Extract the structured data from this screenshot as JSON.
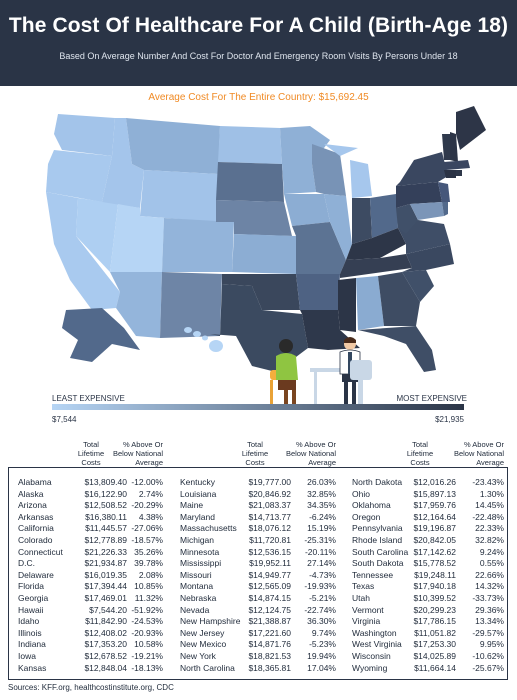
{
  "header": {
    "title": "The Cost Of Healthcare For A Child (Birth-Age 18)",
    "subtitle": "Based On Average Number And Cost For Doctor And Emergency Room Visits By Persons Under 18"
  },
  "average_line": "Average Cost For The Entire Country: $15,692.45",
  "legend": {
    "left_label": "LEAST EXPENSIVE",
    "right_label": "MOST EXPENSIVE",
    "min_value": "$7,544",
    "max_value": "$21,935",
    "color_low": "#b6d5f5",
    "color_high": "#2a3446"
  },
  "table": {
    "header_cost": [
      "Total",
      "Lifetime",
      "Costs"
    ],
    "header_pct": [
      "% Above Or",
      "Below National",
      "Average"
    ],
    "columns": [
      [
        [
          "Alabama",
          "$13,809.40",
          "-12.00%"
        ],
        [
          "Alaska",
          "$16,122.90",
          "2.74%"
        ],
        [
          "Arizona",
          "$12,508.52",
          "-20.29%"
        ],
        [
          "Arkansas",
          "$16,380.11",
          "4.38%"
        ],
        [
          "California",
          "$11,445.57",
          "-27.06%"
        ],
        [
          "Colorado",
          "$12,778.89",
          "-18.57%"
        ],
        [
          "Connecticut",
          "$21,226.33",
          "35.26%"
        ],
        [
          "D.C.",
          "$21,934.87",
          "39.78%"
        ],
        [
          "Delaware",
          "$16,019.35",
          "2.08%"
        ],
        [
          "Florida",
          "$17,394.44",
          "10.85%"
        ],
        [
          "Georgia",
          "$17,469.01",
          "11.32%"
        ],
        [
          "Hawaii",
          "$7,544.20",
          "-51.92%"
        ],
        [
          "Idaho",
          "$11,842.90",
          "-24.53%"
        ],
        [
          "Illinois",
          "$12,408.02",
          "-20.93%"
        ],
        [
          "Indiana",
          "$17,353.20",
          "10.58%"
        ],
        [
          "Iowa",
          "$12,678.52",
          "-19.21%"
        ],
        [
          "Kansas",
          "$12,848.04",
          "-18.13%"
        ]
      ],
      [
        [
          "Kentucky",
          "$19,777.00",
          "26.03%"
        ],
        [
          "Louisiana",
          "$20,846.92",
          "32.85%"
        ],
        [
          "Maine",
          "$21,083.37",
          "34.35%"
        ],
        [
          "Maryland",
          "$14,713.77",
          "-6.24%"
        ],
        [
          "Massachusetts",
          "$18,076.12",
          "15.19%"
        ],
        [
          "Michigan",
          "$11,720.81",
          "-25.31%"
        ],
        [
          "Minnesota",
          "$12,536.15",
          "-20.11%"
        ],
        [
          "Mississippi",
          "$19,952.11",
          "27.14%"
        ],
        [
          "Missouri",
          "$14,949.77",
          "-4.73%"
        ],
        [
          "Montana",
          "$12,565.09",
          "-19.93%"
        ],
        [
          "Nebraska",
          "$14,874.15",
          "-5.21%"
        ],
        [
          "Nevada",
          "$12,124.75",
          "-22.74%"
        ],
        [
          "New Hampshire",
          "$21,388.87",
          "36.30%"
        ],
        [
          "New Jersey",
          "$17,221.60",
          "9.74%"
        ],
        [
          "New Mexico",
          "$14,871.76",
          "-5.23%"
        ],
        [
          "New York",
          "$18,821.53",
          "19.94%"
        ],
        [
          "North Carolina",
          "$18,365.81",
          "17.04%"
        ]
      ],
      [
        [
          "North Dakota",
          "$12,016.26",
          "-23.43%"
        ],
        [
          "Ohio",
          "$15,897.13",
          "1.30%"
        ],
        [
          "Oklahoma",
          "$17,959.76",
          "14.45%"
        ],
        [
          "Oregon",
          "$12,164.64",
          "-22.48%"
        ],
        [
          "Pennsylvania",
          "$19,196.87",
          "22.33%"
        ],
        [
          "Rhode Island",
          "$20,842.05",
          "32.82%"
        ],
        [
          "South Carolina",
          "$17,142.62",
          "9.24%"
        ],
        [
          "South Dakota",
          "$15,778.52",
          "0.55%"
        ],
        [
          "Tennessee",
          "$19,248.11",
          "22.66%"
        ],
        [
          "Texas",
          "$17,940.18",
          "14.32%"
        ],
        [
          "Utah",
          "$10,399.52",
          "-33.73%"
        ],
        [
          "Vermont",
          "$20,299.23",
          "29.36%"
        ],
        [
          "Virginia",
          "$17,786.15",
          "13.34%"
        ],
        [
          "Washington",
          "$11,051.82",
          "-29.57%"
        ],
        [
          "West Virginia",
          "$17,253.30",
          "9.95%"
        ],
        [
          "Wisconsin",
          "$14,025.89",
          "-10.62%"
        ],
        [
          "Wyoming",
          "$11,664.14",
          "-25.67%"
        ]
      ]
    ]
  },
  "sources": "Sources: KFF.org, healthcostinstitute.org, CDC"
}
